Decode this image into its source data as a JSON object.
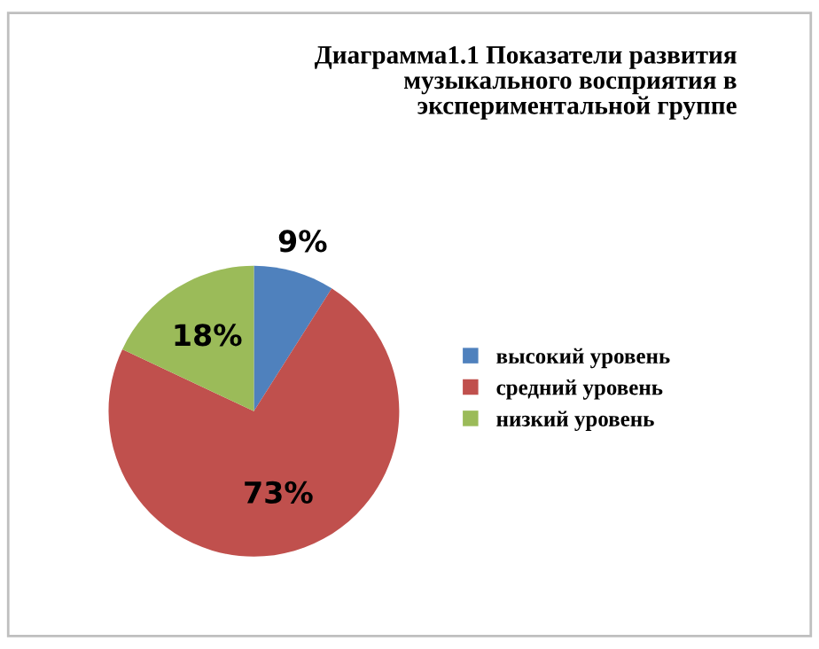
{
  "chart_data": {
    "type": "pie",
    "title": "Диаграмма1.1 Показатели развития\nмузыкального восприятия в\nэкспериментальной группе",
    "categories": [
      "высокий уровень",
      "средний уровень",
      "низкий уровень"
    ],
    "values": [
      9,
      73,
      18
    ],
    "colors": [
      "#4f81bd",
      "#c0504d",
      "#9bbb59"
    ],
    "value_labels": [
      "9%",
      "73%",
      "18%"
    ],
    "legend": "right"
  }
}
